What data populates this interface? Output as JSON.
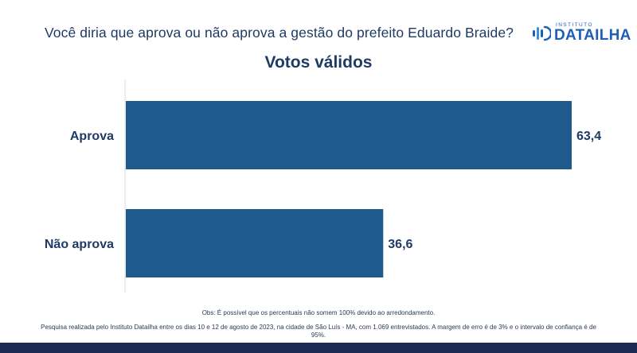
{
  "header": {
    "question": "Você diria que aprova ou não aprova a gestão do prefeito Eduardo Braide?"
  },
  "logo": {
    "small_text": "INSTITUTO",
    "big_text": "DATAILHA",
    "icon": "dataIlha-logo-mark"
  },
  "chart_data": {
    "type": "bar",
    "orientation": "horizontal",
    "title": "Votos válidos",
    "categories": [
      "Aprova",
      "Não aprova"
    ],
    "values": [
      63.4,
      36.6
    ],
    "value_labels": [
      "63,4",
      "36,6"
    ],
    "xlim": [
      0,
      100
    ],
    "grid": false,
    "color": "#1f5a8c"
  },
  "footer": {
    "obs": "Obs: É possível que os percentuais não somem 100% devido ao arredondamento.",
    "source": "Pesquisa realizada pelo Instituto Datailha entre os dias 10 e 12 de agosto de 2023, na cidade de São Luís - MA, com 1.069 entrevistados. A margem de erro é de 3% e o intervalo de confiança é de 95%."
  },
  "colors": {
    "bar": "#1f5a8c",
    "text": "#1f3a64",
    "brand": "#1f5fb8",
    "bottom_bar": "#1b2b52"
  }
}
